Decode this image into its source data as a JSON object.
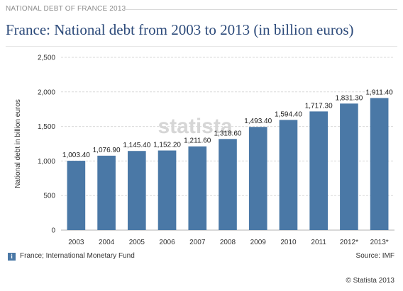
{
  "header": {
    "kicker": "NATIONAL DEBT OF FRANCE 2013",
    "title": "France: National debt from 2003 to 2013 (in billion euros)"
  },
  "footer": {
    "region_note": "France; International Monetary Fund",
    "source": "Source: IMF",
    "copyright": "© Statista 2013"
  },
  "watermark": "statista",
  "colors": {
    "bar": "#4a78a6",
    "grid": "#d9d9d9",
    "title": "#2c4a7a"
  },
  "chart_data": {
    "type": "bar",
    "categories": [
      "2003",
      "2004",
      "2005",
      "2006",
      "2007",
      "2008",
      "2009",
      "2010",
      "2011",
      "2012*",
      "2013*"
    ],
    "values": [
      1003.4,
      1076.9,
      1145.4,
      1152.2,
      1211.6,
      1318.6,
      1493.4,
      1594.4,
      1717.3,
      1831.3,
      1911.4
    ],
    "value_labels": [
      "1,003.40",
      "1,076.90",
      "1,145.40",
      "1,152.20",
      "1,211.60",
      "1,318.60",
      "1,493.40",
      "1,594.40",
      "1,717.30",
      "1,831.30",
      "1,911.40"
    ],
    "ylabel": "National debt in billion euros",
    "xlabel": "",
    "ylim": [
      0,
      2500
    ],
    "yticks": [
      0,
      500,
      1000,
      1500,
      2000,
      2500
    ],
    "ytick_labels": [
      "0",
      "500",
      "1,000",
      "1,500",
      "2,000",
      "2,500"
    ],
    "grid": true
  }
}
